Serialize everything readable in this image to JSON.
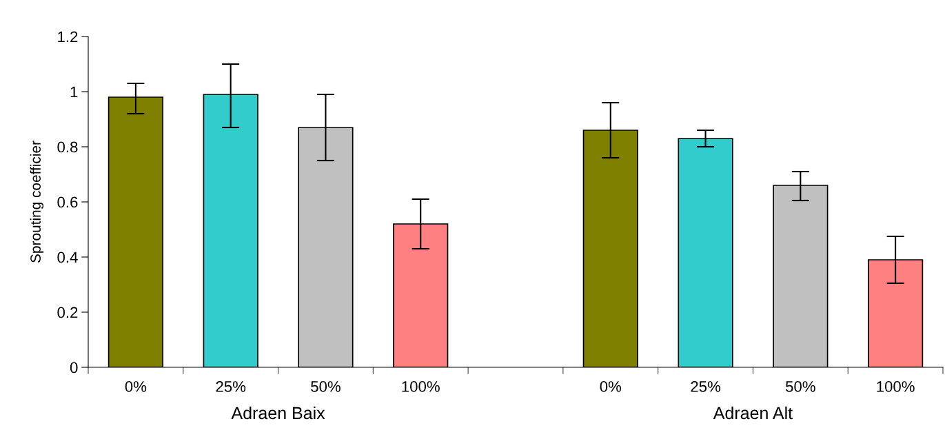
{
  "chart_data": {
    "type": "bar",
    "ylabel": "Sprouting coefficier",
    "categories": [
      "0%",
      "25%",
      "50%",
      "100%",
      null,
      "0%",
      "25%",
      "50%",
      "100%"
    ],
    "values": [
      0.98,
      0.99,
      0.87,
      0.52,
      null,
      0.86,
      0.83,
      0.66,
      0.39
    ],
    "errors": [
      [
        0.92,
        1.03
      ],
      [
        0.87,
        1.1
      ],
      [
        0.75,
        0.99
      ],
      [
        0.43,
        0.61
      ],
      null,
      [
        0.76,
        0.96
      ],
      [
        0.8,
        0.86
      ],
      [
        0.605,
        0.71
      ],
      [
        0.305,
        0.475
      ]
    ],
    "colors": [
      "#808000",
      "#33cccc",
      "#c0c0c0",
      "#ff8080",
      "#ffffff",
      "#808000",
      "#33cccc",
      "#c0c0c0",
      "#ff8080"
    ],
    "annotations": [
      "Adraen Baix",
      "Adraen Alt"
    ],
    "ylim": [
      0,
      1.2
    ],
    "yticks": [
      0,
      0.2,
      0.4,
      0.6,
      0.8,
      1,
      1.2
    ],
    "grid": false,
    "legend": false
  }
}
